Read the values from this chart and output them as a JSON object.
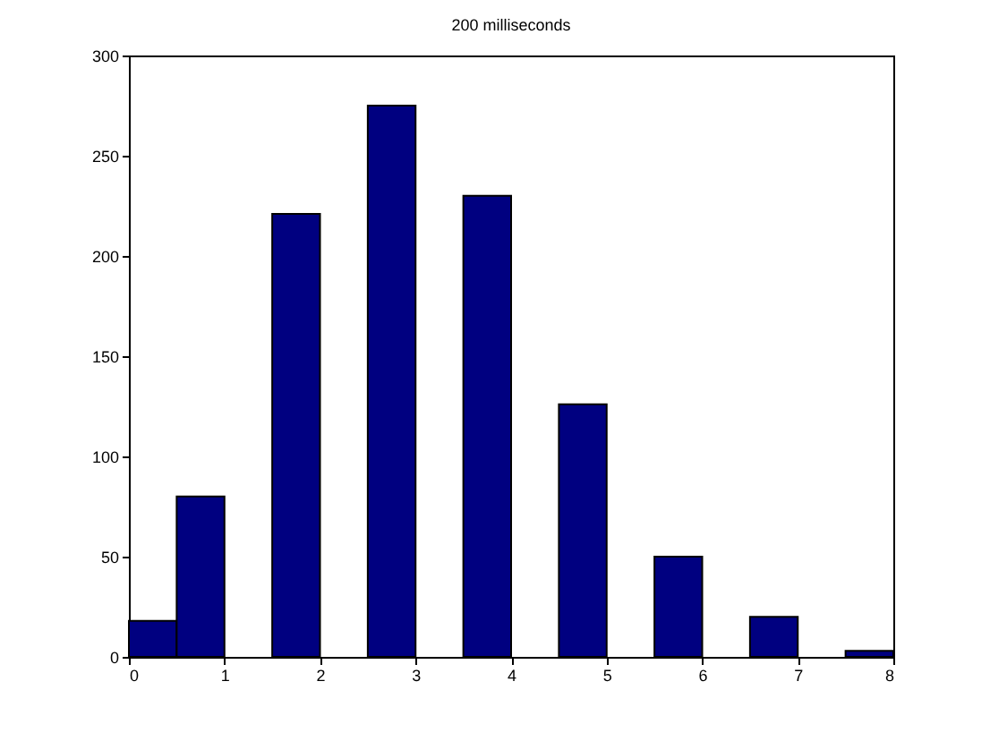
{
  "chart_data": {
    "type": "histogram",
    "title": "200 milliseconds",
    "bins": [
      0,
      0.5,
      1,
      1.5,
      2,
      2.5,
      3,
      3.5,
      4,
      4.5,
      5,
      5.5,
      6,
      6.5,
      7,
      7.5,
      8
    ],
    "values": [
      18,
      80,
      0,
      221,
      0,
      275,
      0,
      230,
      0,
      126,
      0,
      50,
      0,
      20,
      0,
      3
    ],
    "color": "#000080",
    "xlim": [
      0,
      8
    ],
    "xticks": [
      0,
      1,
      2,
      3,
      4,
      5,
      6,
      7,
      8
    ],
    "ylim": [
      0,
      300
    ],
    "yticks": [
      0,
      50,
      100,
      150,
      200,
      250,
      300
    ],
    "grid": false
  }
}
